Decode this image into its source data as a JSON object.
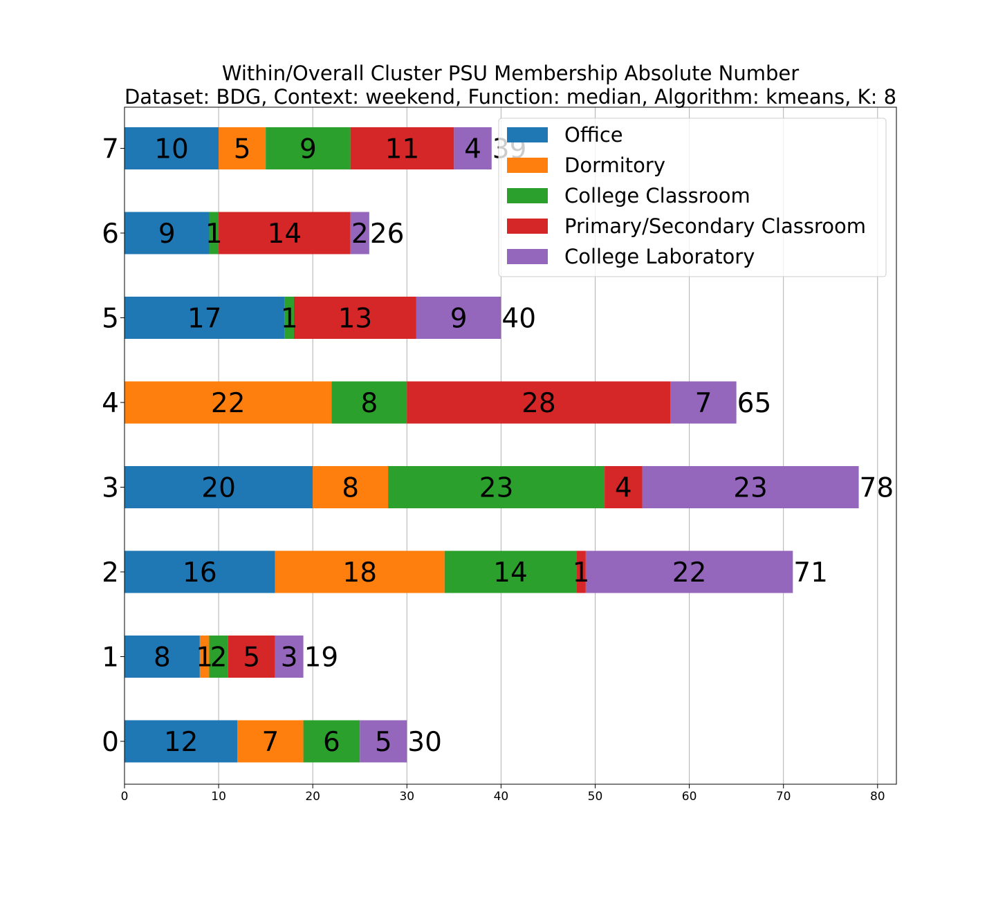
{
  "chart_data": {
    "type": "bar",
    "orientation": "horizontal",
    "stacked": true,
    "title": "Within/Overall Cluster PSU Membership Absolute Number",
    "subtitle": "Dataset: BDG, Context: weekend, Function: median, Algorithm: kmeans, K: 8",
    "xlabel": "",
    "ylabel": "",
    "categories": [
      "0",
      "1",
      "2",
      "3",
      "4",
      "5",
      "6",
      "7"
    ],
    "series": [
      {
        "name": "Office",
        "color": "#1f77b4",
        "values": [
          12,
          8,
          16,
          20,
          0,
          17,
          9,
          10
        ]
      },
      {
        "name": "Dormitory",
        "color": "#ff7f0e",
        "values": [
          7,
          1,
          18,
          8,
          22,
          0,
          0,
          5
        ]
      },
      {
        "name": "College Classroom",
        "color": "#2ca02c",
        "values": [
          6,
          2,
          14,
          23,
          8,
          1,
          1,
          9
        ]
      },
      {
        "name": "Primary/Secondary Classroom",
        "color": "#d62728",
        "values": [
          0,
          5,
          1,
          4,
          28,
          13,
          14,
          11
        ]
      },
      {
        "name": "College Laboratory",
        "color": "#9467bd",
        "values": [
          5,
          3,
          22,
          23,
          7,
          9,
          2,
          4
        ]
      }
    ],
    "totals": [
      30,
      19,
      71,
      78,
      65,
      40,
      26,
      39
    ],
    "xlim": [
      0,
      82
    ],
    "xticks": [
      0,
      10,
      20,
      30,
      40,
      50,
      60,
      70,
      80
    ],
    "grid": "vertical",
    "legend_position": "top-right"
  }
}
